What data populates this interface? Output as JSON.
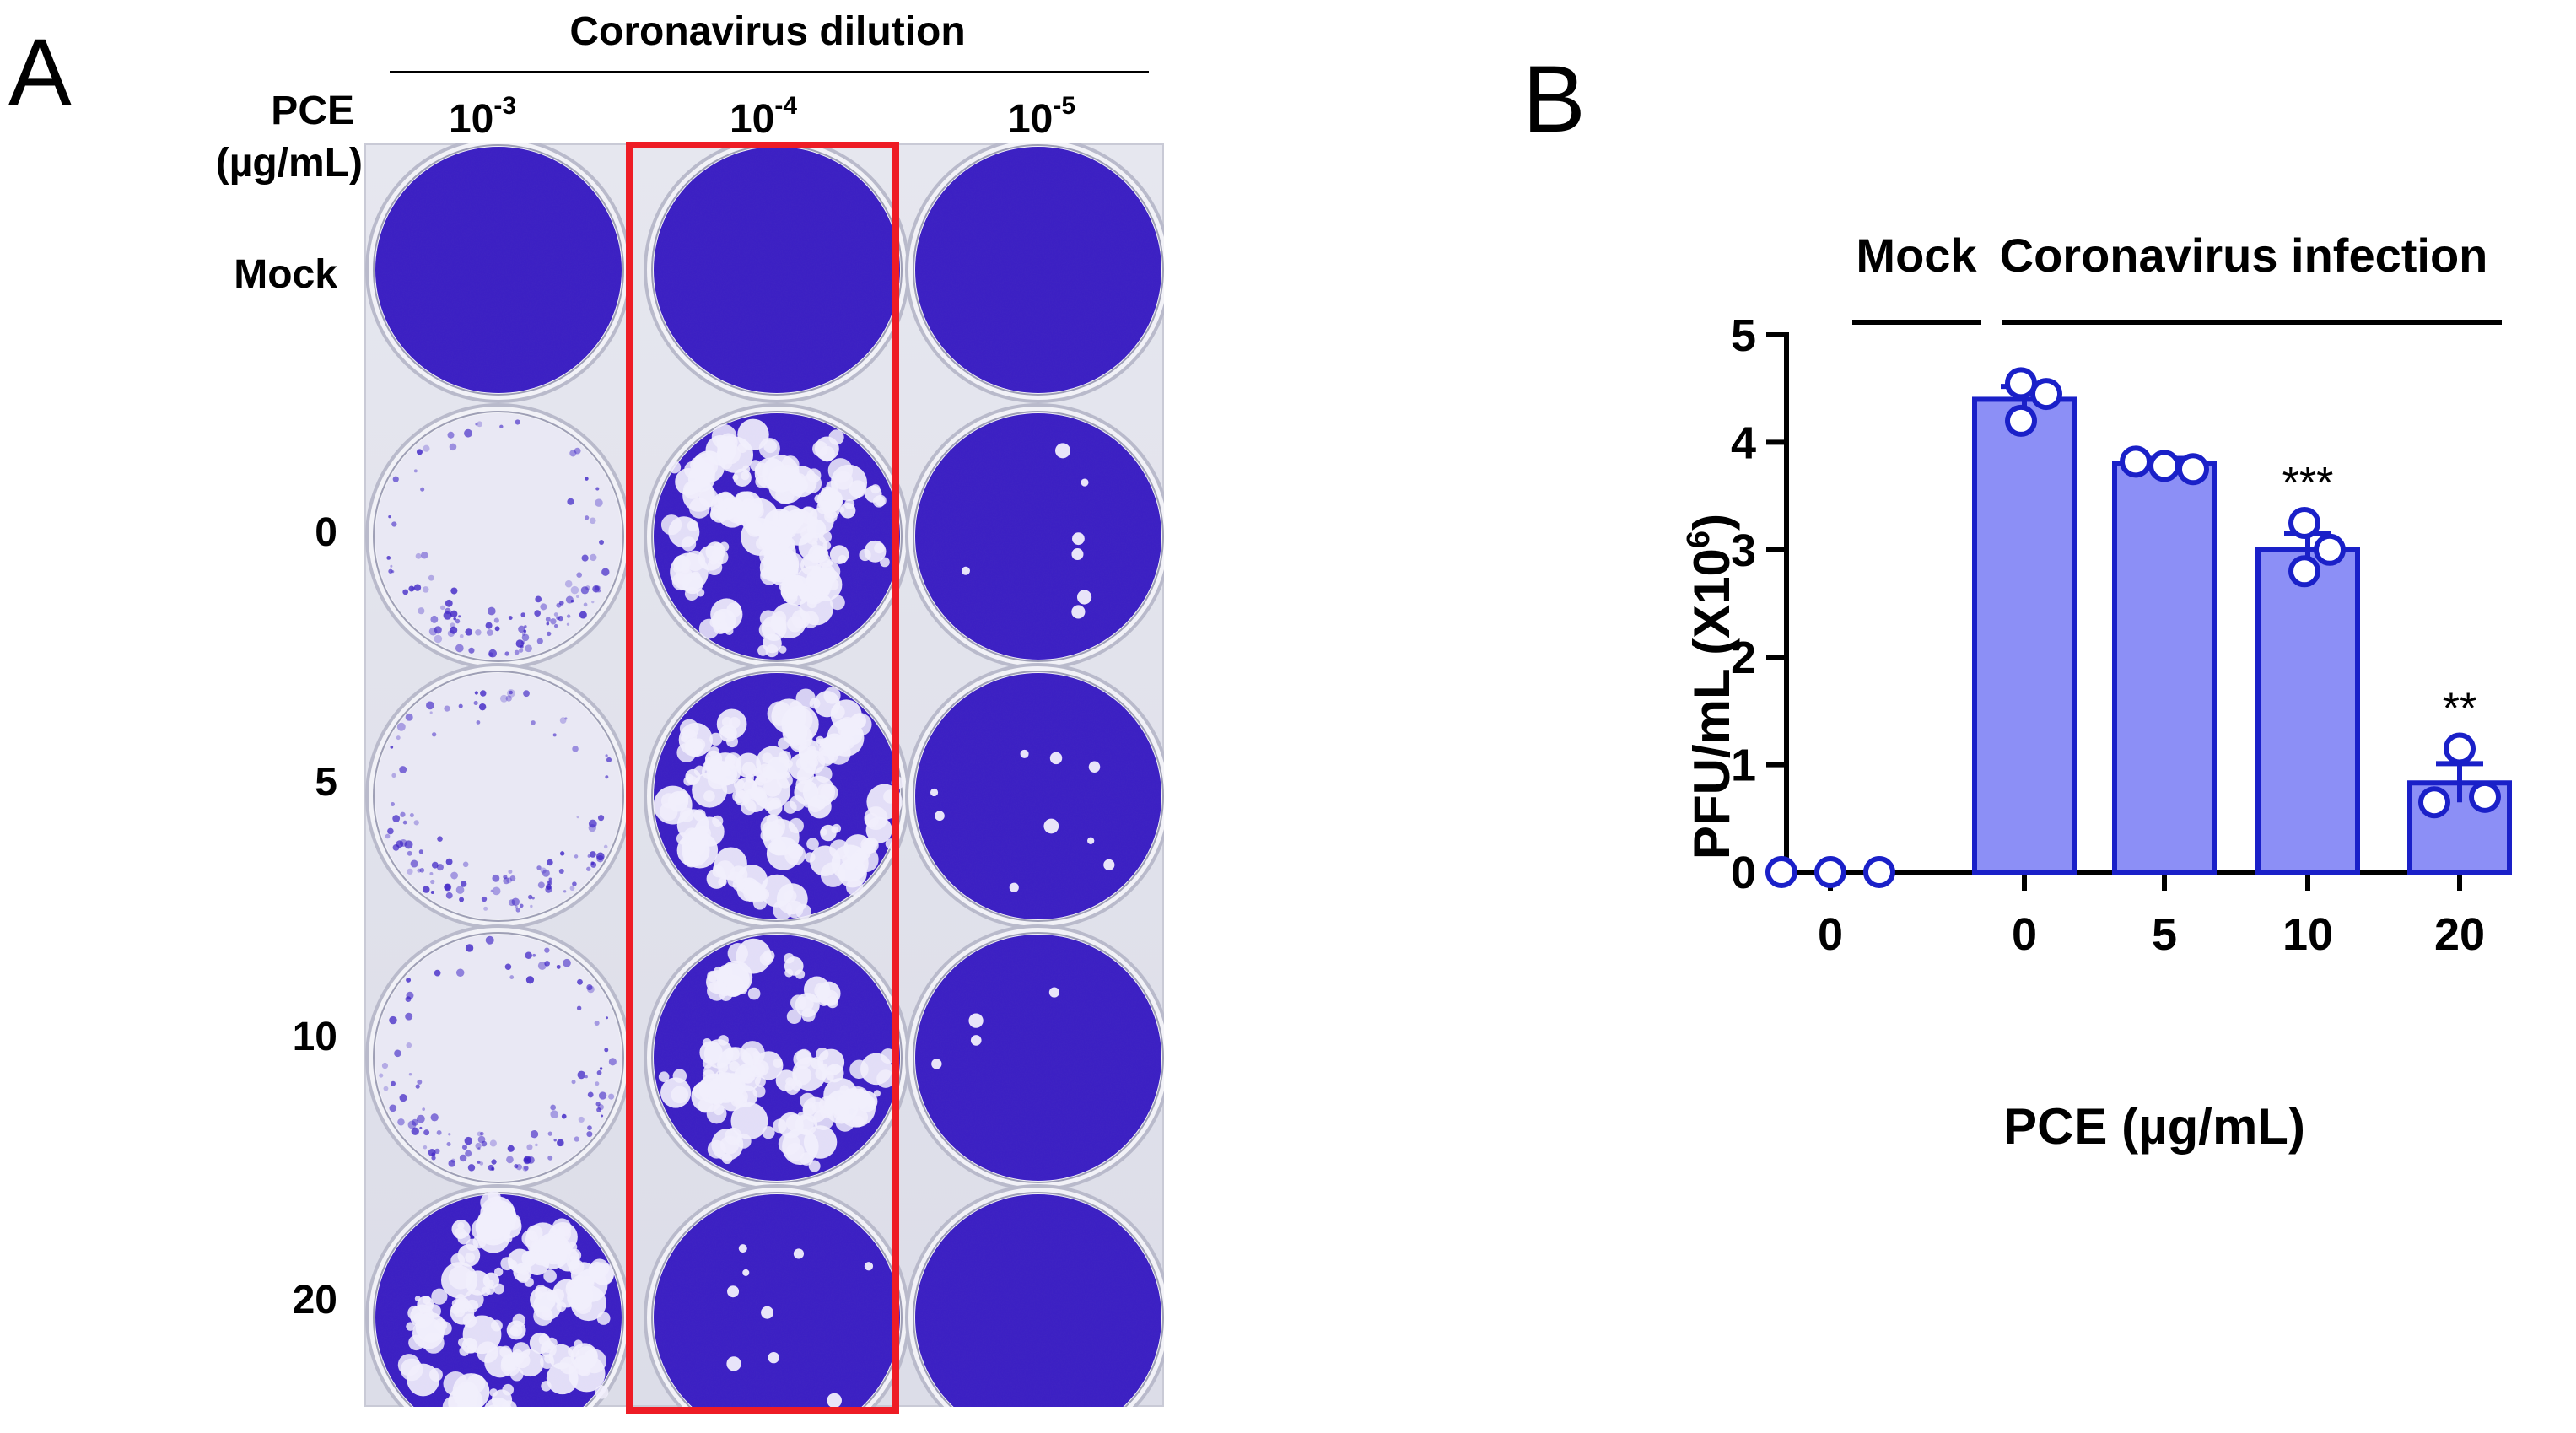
{
  "panel_a": {
    "letter": "A",
    "dilution_title": "Coronavirus dilution",
    "row_header_line1": "PCE",
    "row_header_line2": "(µg/mL)",
    "dilutions": [
      {
        "base": "10",
        "exp": "-3"
      },
      {
        "base": "10",
        "exp": "-4"
      },
      {
        "base": "10",
        "exp": "-5"
      }
    ],
    "rows": [
      "Mock",
      "0",
      "5",
      "10",
      "20"
    ],
    "colors": {
      "stain": "#3a1fc4",
      "stain_dark": "#2a12a6",
      "cleared": "#e9e8f4",
      "highlight": "#ee1c25"
    },
    "well_states": [
      [
        "full",
        "full",
        "full"
      ],
      [
        "cleared",
        "many-plaques",
        "few-plaques"
      ],
      [
        "cleared",
        "many-plaques",
        "few-plaques"
      ],
      [
        "cleared",
        "many-plaques",
        "few-plaques"
      ],
      [
        "many-plaques",
        "few-plaques",
        "full"
      ]
    ],
    "plaque_counts": [
      [
        0,
        0,
        0
      ],
      [
        0,
        60,
        7
      ],
      [
        0,
        55,
        9
      ],
      [
        0,
        38,
        4
      ],
      [
        50,
        9,
        0
      ]
    ]
  },
  "panel_b": {
    "letter": "B",
    "group_mock": "Mock",
    "group_infection": "Coronavirus infection",
    "chart_data": {
      "type": "bar",
      "categories": [
        "0",
        "0",
        "5",
        "10",
        "20"
      ],
      "values": [
        0,
        4.4,
        3.8,
        3.0,
        0.83
      ],
      "errors": [
        0,
        0.12,
        0.05,
        0.15,
        0.18
      ],
      "points": [
        [
          0,
          0,
          0
        ],
        [
          4.55,
          4.2,
          4.45
        ],
        [
          3.82,
          3.78,
          3.75
        ],
        [
          3.25,
          2.8,
          3.0
        ],
        [
          1.15,
          0.65,
          0.7
        ]
      ],
      "significance": [
        "",
        "",
        "",
        "***",
        "**"
      ],
      "xlabel": "PCE (µg/mL)",
      "ylabel_main": "PFU/mL (X10",
      "ylabel_exp": "6",
      "ylabel_close": ")",
      "ylim": [
        0,
        5
      ],
      "yticks": [
        0,
        1,
        2,
        3,
        4,
        5
      ],
      "grid": false,
      "colors": {
        "bar_fill": "#8c8ff6",
        "bar_stroke": "#1a20c8",
        "point_stroke": "#1a20c8"
      }
    }
  }
}
